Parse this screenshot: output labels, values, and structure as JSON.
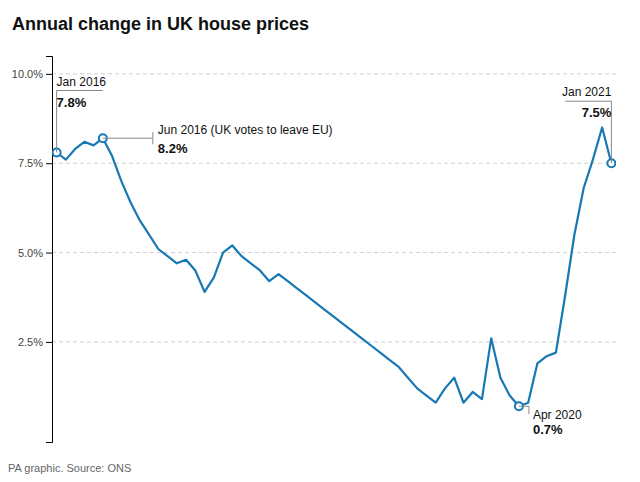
{
  "chart_data": {
    "type": "line",
    "title": "Annual change in UK house prices",
    "source": "PA graphic. Source: ONS",
    "color": "#1878b4",
    "categories": [
      null,
      null,
      null,
      null,
      null,
      null,
      null,
      null,
      null,
      null,
      null,
      null,
      null,
      null,
      null,
      null,
      null,
      null,
      null,
      null,
      null,
      null,
      null,
      null,
      null,
      null,
      null,
      null,
      null,
      null,
      null,
      null,
      null,
      null,
      null,
      null,
      null,
      null,
      null,
      null,
      null,
      null,
      null,
      null,
      null,
      null,
      null,
      null,
      null,
      null,
      null,
      null,
      null,
      null,
      null,
      null,
      null,
      null,
      null,
      null,
      null
    ],
    "values": [
      7.8,
      7.6,
      7.9,
      8.1,
      8.0,
      8.2,
      7.7,
      7.0,
      6.4,
      5.9,
      5.5,
      5.1,
      4.9,
      4.7,
      4.8,
      4.5,
      3.9,
      4.3,
      5.0,
      5.2,
      4.9,
      4.7,
      4.5,
      4.2,
      4.4,
      4.2,
      4.0,
      3.8,
      3.6,
      3.4,
      3.2,
      3.0,
      2.8,
      2.6,
      2.4,
      2.2,
      2.0,
      1.8,
      1.5,
      1.2,
      1.0,
      0.8,
      1.2,
      1.5,
      0.8,
      1.1,
      0.9,
      2.6,
      1.5,
      1.0,
      0.7,
      0.8,
      1.9,
      2.1,
      2.2,
      3.8,
      5.5,
      6.8,
      7.6,
      8.5,
      7.5
    ],
    "ylim": [
      -0.3,
      10.5
    ],
    "yticks": [
      {
        "value": 2.5,
        "label": "2.5%"
      },
      {
        "value": 5.0,
        "label": "5.0%"
      },
      {
        "value": 7.5,
        "label": "7.5%"
      },
      {
        "value": 10.0,
        "label": "10.0%"
      }
    ],
    "grid": true,
    "tick_labels": "y",
    "annotations": [
      {
        "x": 0,
        "y": 7.8,
        "label": "Jan 2016",
        "value_label": "7.8%"
      },
      {
        "x": 5,
        "y": 8.2,
        "label": "Jun 2016 (UK votes to leave EU)",
        "value_label": "8.2%"
      },
      {
        "x": 50,
        "y": 0.7,
        "label": "Apr 2020",
        "value_label": "0.7%"
      },
      {
        "x": 60,
        "y": 7.5,
        "label": "Jan 2021",
        "value_label": "7.5%"
      }
    ]
  }
}
